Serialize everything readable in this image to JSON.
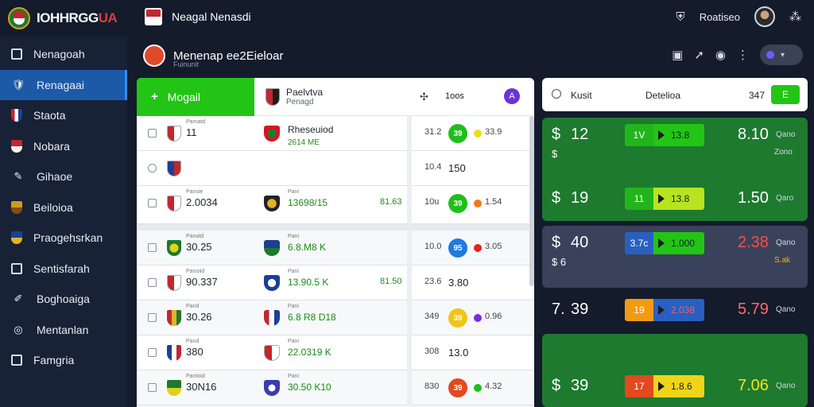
{
  "brand": {
    "name_main": "IOHHRGG",
    "name_accent": "UA"
  },
  "topbar": {
    "title": "Neagal Nenasdi",
    "user_label": "Roatiseo"
  },
  "sidebar": {
    "items": [
      {
        "label": "Nenagoah",
        "icon": "square-icon",
        "active": false
      },
      {
        "label": "Renagaai",
        "icon": "shield-icon",
        "active": true
      },
      {
        "label": "Staota",
        "icon": "shield-icon",
        "active": false
      },
      {
        "label": "Nobara",
        "icon": "shield-icon",
        "active": false
      },
      {
        "label": "Gihaoe",
        "icon": "pencil-icon",
        "active": false
      },
      {
        "label": "Beiloioa",
        "icon": "shield-icon",
        "active": false
      },
      {
        "label": "Praogehsrkan",
        "icon": "shield-icon",
        "active": false
      },
      {
        "label": "Sentisfarah",
        "icon": "square-icon",
        "active": false
      },
      {
        "label": "Boghoaiga",
        "icon": "pencil-icon",
        "active": false
      },
      {
        "label": "Mentanlan",
        "icon": "circle-icon",
        "active": false
      },
      {
        "label": "Famgria",
        "icon": "square-icon",
        "active": false
      }
    ]
  },
  "header": {
    "title": "Menenap ee2Eieloar",
    "subtitle": "Fuinunit"
  },
  "matches_panel": {
    "tab_label": "Mogail",
    "team_name": "Paelvtva",
    "team_sub": "Penagd",
    "odds_label": "1oos",
    "badge": "A",
    "rows": [
      {
        "lbl": "Pamatd",
        "score": "11",
        "vlbl": "",
        "val": "Rheseuiod",
        "val2": "2614 ME",
        "extra": "",
        "odd": "31.2",
        "ball": "39",
        "ball_color": "#1fbf1a",
        "dot_color": "#e6e11a",
        "side": "33.9",
        "plain": ""
      },
      {
        "lbl": "",
        "score": "",
        "vlbl": "",
        "val": "",
        "val2": "",
        "extra": "",
        "odd": "10.4",
        "ball": "",
        "ball_color": "",
        "dot_color": "",
        "side": "",
        "plain": "150"
      },
      {
        "lbl": "Pansie",
        "score": "2.0034",
        "vlbl": "Pani",
        "val": "13698/15",
        "val2": "",
        "extra": "81.63",
        "odd": "10u",
        "ball": "39",
        "ball_color": "#1fbf1a",
        "dot_color": "#f07a1a",
        "side": "1.54",
        "plain": ""
      },
      {
        "lbl": "Panatd",
        "score": "30.25",
        "vlbl": "Pani",
        "val": "6.8.M8 K",
        "val2": "",
        "extra": "",
        "odd": "10.0",
        "ball": "95",
        "ball_color": "#1e7be0",
        "dot_color": "#e62121",
        "side": "3.05",
        "plain": ""
      },
      {
        "lbl": "Panoiid",
        "score": "90.337",
        "vlbl": "Pani",
        "val": "13.90.5 K",
        "val2": "",
        "extra": "81.50",
        "odd": "23.6",
        "ball": "",
        "ball_color": "",
        "dot_color": "",
        "side": "",
        "plain": "3.80"
      },
      {
        "lbl": "Pand",
        "score": "30.26",
        "vlbl": "Pani",
        "val": "6.8 R8 D18",
        "val2": "",
        "extra": "",
        "odd": "349",
        "ball": "39",
        "ball_color": "#f0c419",
        "dot_color": "#7a2be0",
        "side": "0.96",
        "plain": ""
      },
      {
        "lbl": "Pand",
        "score": "380",
        "vlbl": "Pani",
        "val": "22.0319 K",
        "val2": "",
        "extra": "",
        "odd": "308",
        "ball": "",
        "ball_color": "",
        "dot_color": "",
        "side": "",
        "plain": "13.0"
      },
      {
        "lbl": "Pantoid",
        "score": "30N16",
        "vlbl": "Pani",
        "val": "30.50 K10",
        "val2": "",
        "extra": "",
        "odd": "830",
        "ball": "39",
        "ball_color": "#e2491e",
        "dot_color": "#1fbf1a",
        "side": "4.32",
        "plain": ""
      }
    ]
  },
  "board": {
    "head": {
      "k": "Kusit",
      "d": "Detelioa",
      "n": "347",
      "go": "E"
    },
    "lines": [
      {
        "cur": "$",
        "big": "12",
        "a": "1V",
        "a_color": "#22b51b",
        "b": "13.8",
        "b_color": "#22c515",
        "rate": "8.10",
        "unit": "Qano",
        "sub": "$",
        "sub2": "Zono",
        "card": "green"
      },
      {
        "cur": "$",
        "big": "19",
        "a": "11",
        "a_color": "#22b51b",
        "b": "13.8",
        "b_color": "#b7e41e",
        "rate": "1.50",
        "unit": "Qaro",
        "sub": "",
        "sub2": "",
        "card": "green"
      },
      {
        "cur": "$",
        "big": "40",
        "a": "3.7c",
        "a_color": "#2a5fc2",
        "b": "1.000",
        "b_color": "#22c515",
        "rate": "2.38",
        "unit": "Qano",
        "sub": "$ 6",
        "sub2": "S.ak",
        "card": "slate"
      },
      {
        "cur": "7.",
        "big": "39",
        "a": "19",
        "a_color": "#f29b12",
        "b": "2.038",
        "b_color": "#2a5fc2",
        "rate": "5.79",
        "unit": "Qano",
        "sub": "",
        "sub2": "",
        "card": "dark"
      },
      {
        "cur": "$",
        "big": "39",
        "a": "17",
        "a_color": "#e2491e",
        "b": "1.8.6",
        "b_color": "#f0d419",
        "rate": "7.06",
        "unit": "Qano",
        "sub": "",
        "sub2": "",
        "card": "green"
      }
    ]
  }
}
